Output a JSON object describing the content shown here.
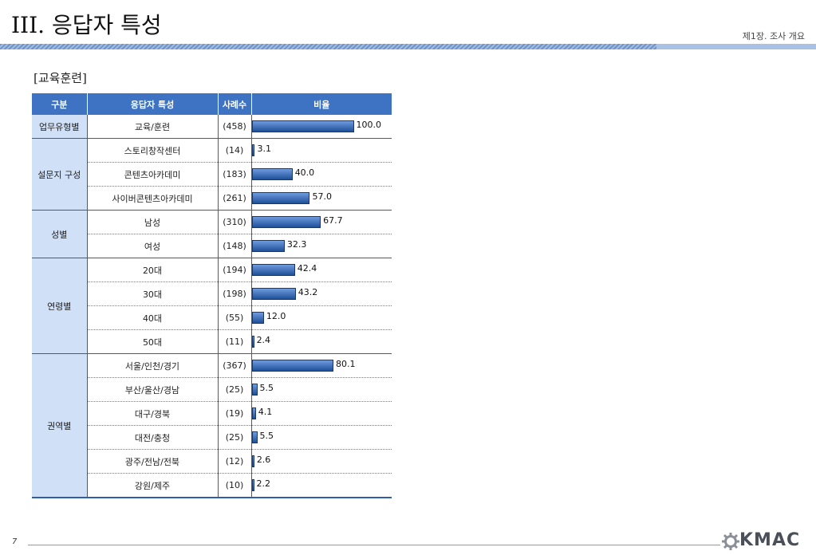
{
  "header": {
    "title": "III. 응답자 특성",
    "chapter": "제1장. 조사 개요"
  },
  "section": {
    "label": "[교육훈련]"
  },
  "table": {
    "columns": [
      "구분",
      "응답자 특성",
      "사례수",
      "비율"
    ],
    "groups": [
      {
        "label": "업무유형별",
        "rows": [
          {
            "label": "교육/훈련",
            "n": "(458)",
            "value": 100.0,
            "value_label": "100.0"
          }
        ]
      },
      {
        "label": "설문지 구성",
        "rows": [
          {
            "label": "스토리창작센터",
            "n": "(14)",
            "value": 3.1,
            "value_label": "3.1"
          },
          {
            "label": "콘텐츠아카데미",
            "n": "(183)",
            "value": 40.0,
            "value_label": "40.0"
          },
          {
            "label": "사이버콘텐츠아카데미",
            "n": "(261)",
            "value": 57.0,
            "value_label": "57.0"
          }
        ]
      },
      {
        "label": "성별",
        "rows": [
          {
            "label": "남성",
            "n": "(310)",
            "value": 67.7,
            "value_label": "67.7"
          },
          {
            "label": "여성",
            "n": "(148)",
            "value": 32.3,
            "value_label": "32.3"
          }
        ]
      },
      {
        "label": "연령별",
        "rows": [
          {
            "label": "20대",
            "n": "(194)",
            "value": 42.4,
            "value_label": "42.4"
          },
          {
            "label": "30대",
            "n": "(198)",
            "value": 43.2,
            "value_label": "43.2"
          },
          {
            "label": "40대",
            "n": "(55)",
            "value": 12.0,
            "value_label": "12.0"
          },
          {
            "label": "50대",
            "n": "(11)",
            "value": 2.4,
            "value_label": "2.4"
          }
        ]
      },
      {
        "label": "권역별",
        "rows": [
          {
            "label": "서울/인천/경기",
            "n": "(367)",
            "value": 80.1,
            "value_label": "80.1"
          },
          {
            "label": "부산/울산/경남",
            "n": "(25)",
            "value": 5.5,
            "value_label": "5.5"
          },
          {
            "label": "대구/경북",
            "n": "(19)",
            "value": 4.1,
            "value_label": "4.1"
          },
          {
            "label": "대전/충청",
            "n": "(25)",
            "value": 5.5,
            "value_label": "5.5"
          },
          {
            "label": "광주/전남/전북",
            "n": "(12)",
            "value": 2.6,
            "value_label": "2.6"
          },
          {
            "label": "강원/제주",
            "n": "(10)",
            "value": 2.2,
            "value_label": "2.2"
          }
        ]
      }
    ]
  },
  "chart_data": {
    "type": "bar",
    "orientation": "horizontal",
    "xlim": [
      0,
      100
    ],
    "categories": [
      "교육/훈련",
      "스토리창작센터",
      "콘텐츠아카데미",
      "사이버콘텐츠아카데미",
      "남성",
      "여성",
      "20대",
      "30대",
      "40대",
      "50대",
      "서울/인천/경기",
      "부산/울산/경남",
      "대구/경북",
      "대전/충청",
      "광주/전남/전북",
      "강원/제주"
    ],
    "values": [
      100.0,
      3.1,
      40.0,
      57.0,
      67.7,
      32.3,
      42.4,
      43.2,
      12.0,
      2.4,
      80.1,
      5.5,
      4.1,
      5.5,
      2.6,
      2.2
    ],
    "bar_color": "#2f65b4"
  },
  "footer": {
    "page_number": "7",
    "logo_text": "KMAC"
  }
}
